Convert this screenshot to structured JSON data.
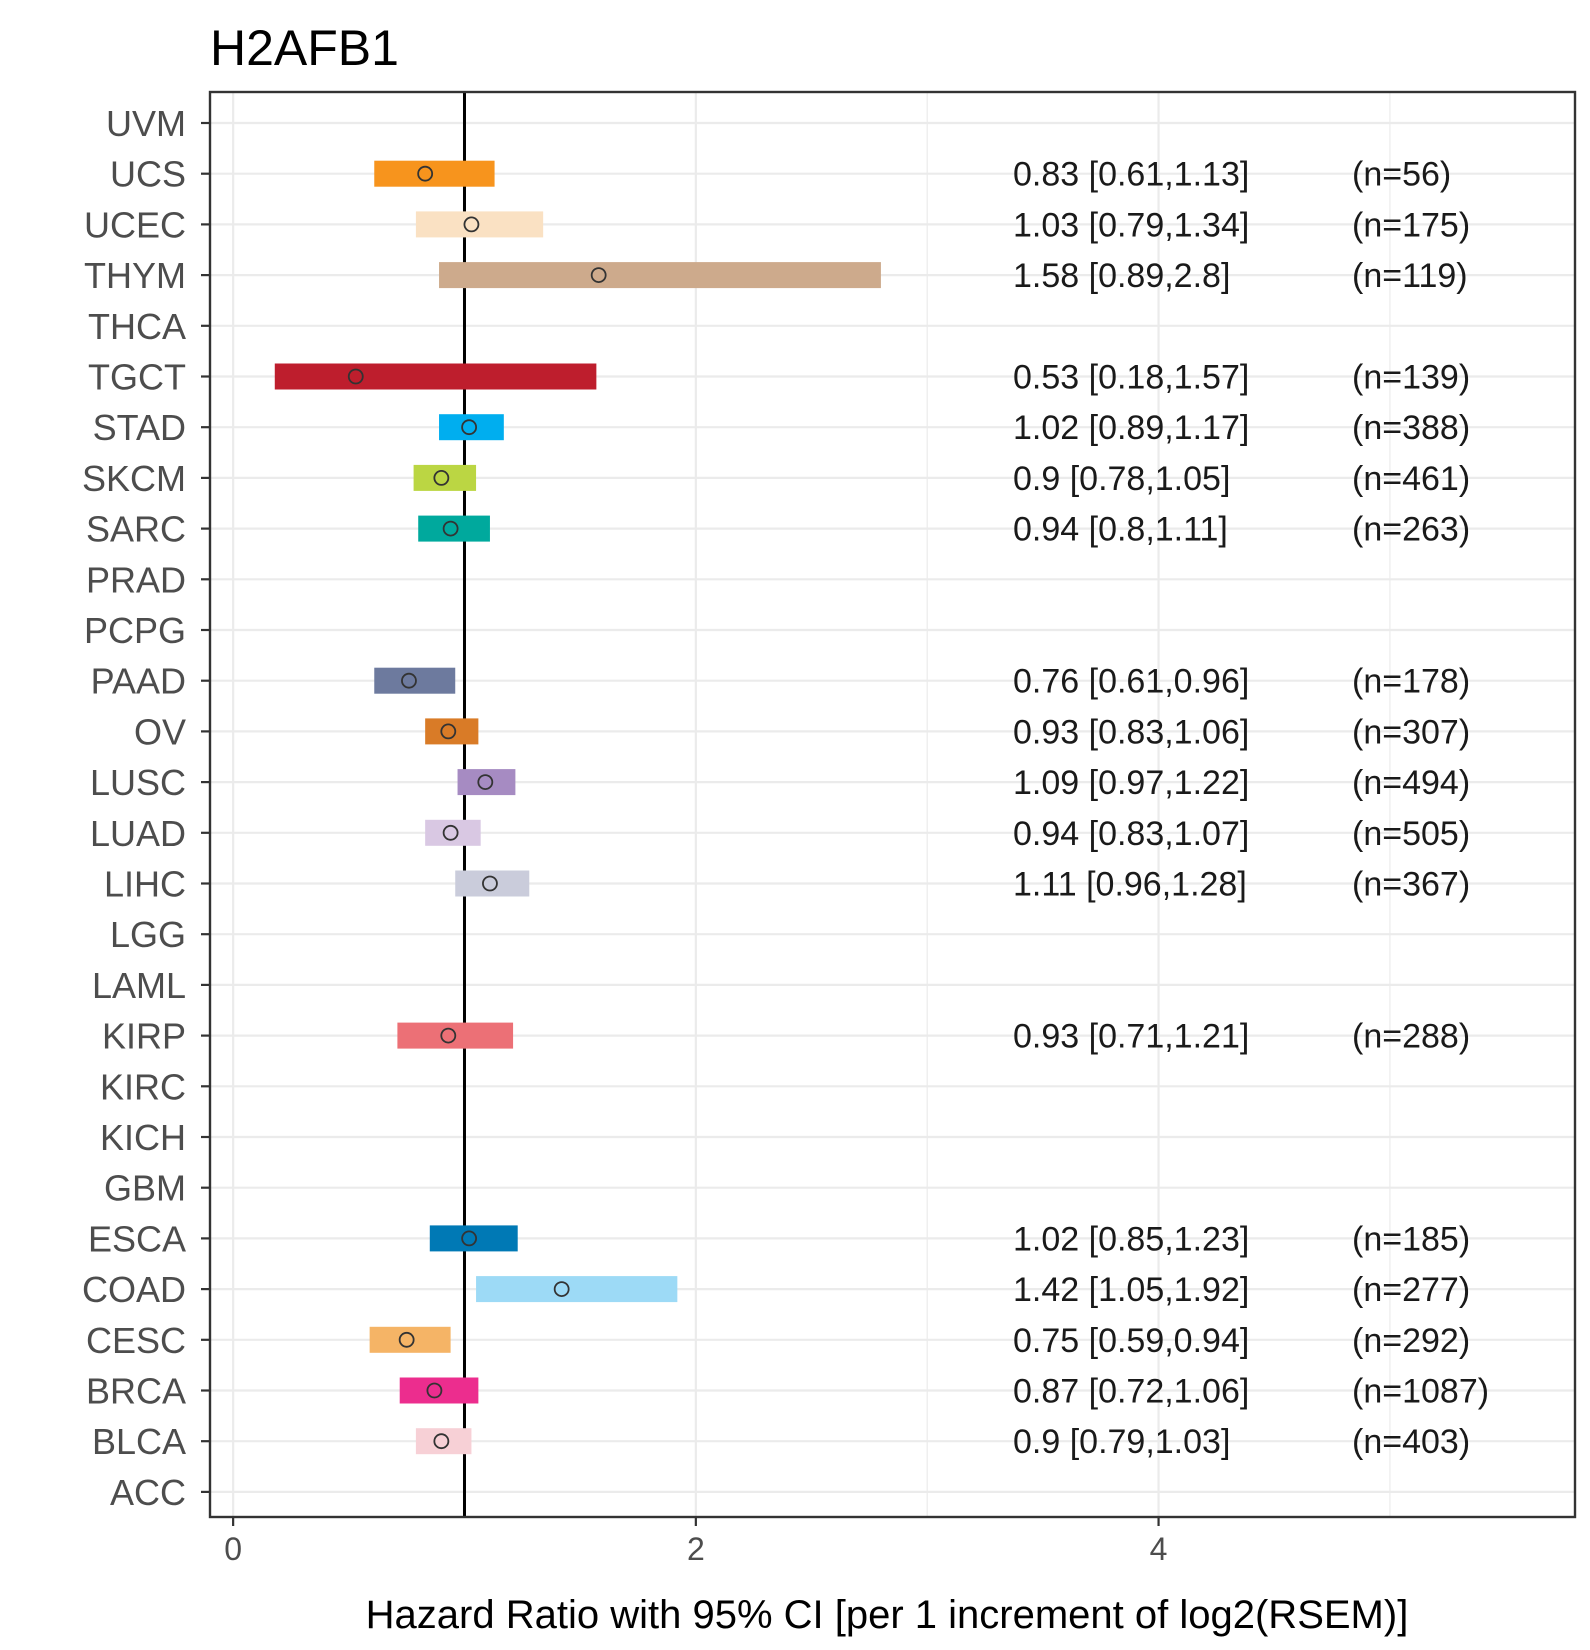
{
  "chart_data": {
    "type": "forest",
    "title": "H2AFB1",
    "xlabel": "Hazard Ratio with 95% CI [per 1 increment of log2(RSEM)]",
    "xlim": [
      -0.1,
      5.8
    ],
    "x_ticks": [
      0,
      2,
      4
    ],
    "x_tick_labels": [
      "0",
      "2",
      "4"
    ],
    "reference_line": 1.0,
    "grid": true,
    "categories": [
      "UVM",
      "UCS",
      "UCEC",
      "THYM",
      "THCA",
      "TGCT",
      "STAD",
      "SKCM",
      "SARC",
      "PRAD",
      "PCPG",
      "PAAD",
      "OV",
      "LUSC",
      "LUAD",
      "LIHC",
      "LGG",
      "LAML",
      "KIRP",
      "KIRC",
      "KICH",
      "GBM",
      "ESCA",
      "COAD",
      "CESC",
      "BRCA",
      "BLCA",
      "ACC"
    ],
    "series": [
      {
        "name": "UCS",
        "hr": 0.83,
        "lower": 0.61,
        "upper": 1.13,
        "n": 56,
        "color": "#F7941D",
        "label": "0.83 [0.61,1.13]",
        "n_label": "(n=56)"
      },
      {
        "name": "UCEC",
        "hr": 1.03,
        "lower": 0.79,
        "upper": 1.34,
        "n": 175,
        "color": "#FAE1C3",
        "label": "1.03 [0.79,1.34]",
        "n_label": "(n=175)"
      },
      {
        "name": "THYM",
        "hr": 1.58,
        "lower": 0.89,
        "upper": 2.8,
        "n": 119,
        "color": "#CDAA8C",
        "label": "1.58 [0.89,2.8]",
        "n_label": "(n=119)"
      },
      {
        "name": "TGCT",
        "hr": 0.53,
        "lower": 0.18,
        "upper": 1.57,
        "n": 139,
        "color": "#BE1E2D",
        "label": "0.53 [0.18,1.57]",
        "n_label": "(n=139)"
      },
      {
        "name": "STAD",
        "hr": 1.02,
        "lower": 0.89,
        "upper": 1.17,
        "n": 388,
        "color": "#00AEEF",
        "label": "1.02 [0.89,1.17]",
        "n_label": "(n=388)"
      },
      {
        "name": "SKCM",
        "hr": 0.9,
        "lower": 0.78,
        "upper": 1.05,
        "n": 461,
        "color": "#BBD643",
        "label": "0.9 [0.78,1.05]",
        "n_label": "(n=461)"
      },
      {
        "name": "SARC",
        "hr": 0.94,
        "lower": 0.8,
        "upper": 1.11,
        "n": 263,
        "color": "#00A99D",
        "label": "0.94 [0.8,1.11]",
        "n_label": "(n=263)"
      },
      {
        "name": "PAAD",
        "hr": 0.76,
        "lower": 0.61,
        "upper": 0.96,
        "n": 178,
        "color": "#6D7A9E",
        "label": "0.76 [0.61,0.96]",
        "n_label": "(n=178)"
      },
      {
        "name": "OV",
        "hr": 0.93,
        "lower": 0.83,
        "upper": 1.06,
        "n": 307,
        "color": "#D97B27",
        "label": "0.93 [0.83,1.06]",
        "n_label": "(n=307)"
      },
      {
        "name": "LUSC",
        "hr": 1.09,
        "lower": 0.97,
        "upper": 1.22,
        "n": 494,
        "color": "#A68BC2",
        "label": "1.09 [0.97,1.22]",
        "n_label": "(n=494)"
      },
      {
        "name": "LUAD",
        "hr": 0.94,
        "lower": 0.83,
        "upper": 1.07,
        "n": 505,
        "color": "#D9C8E3",
        "label": "0.94 [0.83,1.07]",
        "n_label": "(n=505)"
      },
      {
        "name": "LIHC",
        "hr": 1.11,
        "lower": 0.96,
        "upper": 1.28,
        "n": 367,
        "color": "#CACCDB",
        "label": "1.11 [0.96,1.28]",
        "n_label": "(n=367)"
      },
      {
        "name": "KIRP",
        "hr": 0.93,
        "lower": 0.71,
        "upper": 1.21,
        "n": 288,
        "color": "#EC7076",
        "label": "0.93 [0.71,1.21]",
        "n_label": "(n=288)"
      },
      {
        "name": "ESCA",
        "hr": 1.02,
        "lower": 0.85,
        "upper": 1.23,
        "n": 185,
        "color": "#0079B5",
        "label": "1.02 [0.85,1.23]",
        "n_label": "(n=185)"
      },
      {
        "name": "COAD",
        "hr": 1.42,
        "lower": 1.05,
        "upper": 1.92,
        "n": 277,
        "color": "#9DDAF6",
        "label": "1.42 [1.05,1.92]",
        "n_label": "(n=277)"
      },
      {
        "name": "CESC",
        "hr": 0.75,
        "lower": 0.59,
        "upper": 0.94,
        "n": 292,
        "color": "#F5B466",
        "label": "0.75 [0.59,0.94]",
        "n_label": "(n=292)"
      },
      {
        "name": "BRCA",
        "hr": 0.87,
        "lower": 0.72,
        "upper": 1.06,
        "n": 1087,
        "color": "#EC2D8E",
        "label": "0.87 [0.72,1.06]",
        "n_label": "(n=1087)"
      },
      {
        "name": "BLCA",
        "hr": 0.9,
        "lower": 0.79,
        "upper": 1.03,
        "n": 403,
        "color": "#F7D0D6",
        "label": "0.9 [0.79,1.03]",
        "n_label": "(n=403)"
      }
    ]
  }
}
